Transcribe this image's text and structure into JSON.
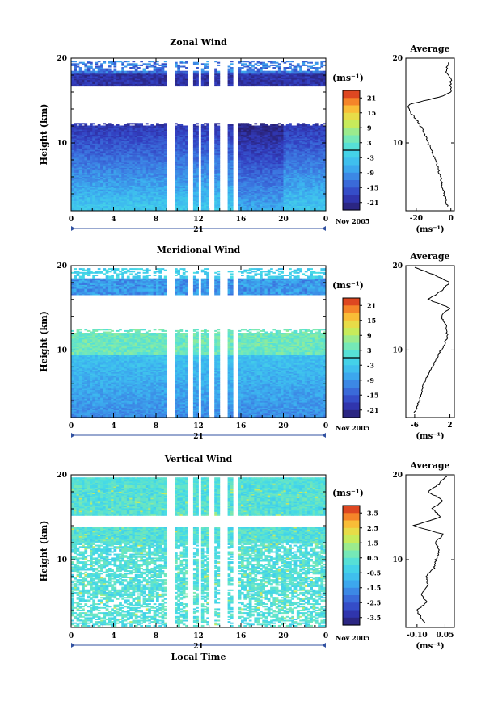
{
  "chart_data": [
    {
      "type": "heatmap",
      "title": "Zonal Wind",
      "xlabel": "",
      "ylabel": "Height (km)",
      "xlim": [
        0,
        24
      ],
      "ylim": [
        2,
        20
      ],
      "x_ticks": [
        "0",
        "4",
        "8",
        "12",
        "16",
        "20",
        "0"
      ],
      "y_ticks": [
        "10",
        "20"
      ],
      "date_label": "21",
      "date_suffix": "Nov 2005",
      "colorbar": {
        "unit": "(ms⁻¹)",
        "ticks": [
          "21",
          "15",
          "9",
          "3",
          "-3",
          "-9",
          "-15",
          "-21"
        ],
        "range": [
          -24,
          24
        ]
      },
      "profile": {
        "title": "Average",
        "xlabel": "(ms⁻¹)",
        "x_ticks": [
          "-20",
          "0"
        ],
        "xlim": [
          -26,
          2
        ],
        "heights": [
          2.5,
          4,
          6,
          8,
          10,
          11.5,
          12.5,
          13.5,
          14.5,
          15.5,
          16,
          17.5,
          18.5,
          19.5
        ],
        "values": [
          -2,
          -4,
          -6,
          -9,
          -13,
          -16,
          -19,
          -23,
          -25,
          -5,
          0,
          0,
          -3,
          -1
        ]
      }
    },
    {
      "type": "heatmap",
      "title": "Meridional Wind",
      "xlabel": "",
      "ylabel": "Height (km)",
      "xlim": [
        0,
        24
      ],
      "ylim": [
        2,
        20
      ],
      "x_ticks": [
        "0",
        "4",
        "8",
        "12",
        "16",
        "20",
        "0"
      ],
      "y_ticks": [
        "10",
        "20"
      ],
      "date_label": "21",
      "date_suffix": "Nov 2005",
      "colorbar": {
        "unit": "(ms⁻¹)",
        "ticks": [
          "21",
          "15",
          "9",
          "3",
          "-3",
          "-9",
          "-15",
          "-21"
        ],
        "range": [
          -24,
          24
        ]
      },
      "profile": {
        "title": "Average",
        "xlabel": "(ms⁻¹)",
        "x_ticks": [
          "-6",
          "2"
        ],
        "xlim": [
          -8,
          3
        ],
        "heights": [
          2.5,
          4,
          6,
          8,
          10,
          11.5,
          13,
          14,
          15,
          16,
          17,
          18,
          19,
          19.8
        ],
        "values": [
          -6,
          -5,
          -4,
          -2,
          0,
          1.5,
          1,
          0,
          2,
          -3,
          0,
          2,
          -2,
          -6
        ]
      }
    },
    {
      "type": "heatmap",
      "title": "Vertical Wind",
      "xlabel": "Local Time",
      "ylabel": "Height (km)",
      "xlim": [
        0,
        24
      ],
      "ylim": [
        2,
        20
      ],
      "x_ticks": [
        "0",
        "4",
        "8",
        "12",
        "16",
        "20",
        "0"
      ],
      "y_ticks": [
        "10",
        "20"
      ],
      "date_label": "21",
      "date_suffix": "Nov 2005",
      "colorbar": {
        "unit": "(ms⁻¹)",
        "ticks": [
          "3.5",
          "2.5",
          "1.5",
          "0.5",
          "-0.5",
          "-1.5",
          "-2.5",
          "-3.5"
        ],
        "range": [
          -4,
          4
        ]
      },
      "profile": {
        "title": "Average",
        "xlabel": "(ms⁻¹)",
        "x_ticks": [
          "-0.10",
          "0.05"
        ],
        "xlim": [
          -0.16,
          0.1
        ],
        "heights": [
          2.5,
          4,
          5,
          6,
          7,
          8,
          9,
          10,
          11,
          12,
          13,
          14,
          15,
          16,
          17,
          18,
          19,
          19.8
        ],
        "values": [
          -0.06,
          -0.1,
          -0.05,
          -0.08,
          -0.04,
          -0.05,
          -0.01,
          0.0,
          0.02,
          0.0,
          0.04,
          -0.12,
          0.03,
          -0.02,
          0.04,
          -0.04,
          0.02,
          0.06
        ]
      }
    }
  ]
}
